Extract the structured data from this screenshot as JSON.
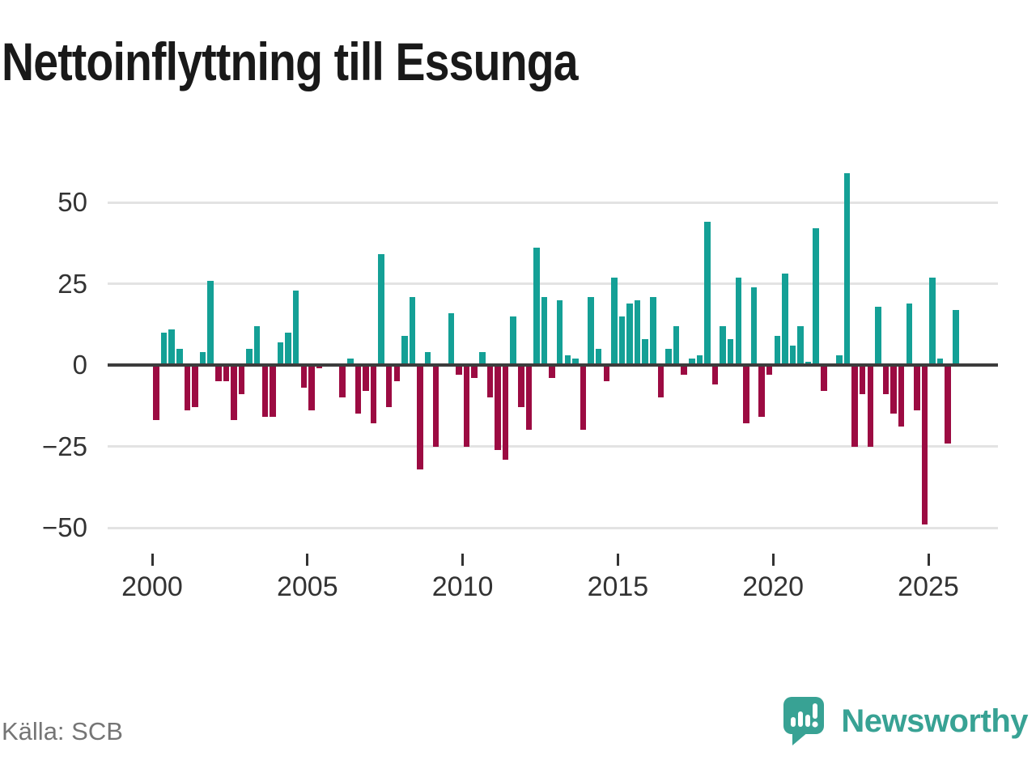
{
  "title": "Nettoinflyttning till Essunga",
  "source": "Källa: SCB",
  "logo": {
    "text": "Newsworthy",
    "icon": "newsworthy-speech-bubble-chart-icon"
  },
  "chart_data": {
    "type": "bar",
    "title": "Nettoinflyttning till Essunga",
    "frequency": "quarterly",
    "x_start": "2000-Q1",
    "x_end": "2025-Q4",
    "values": [
      -17,
      10,
      11,
      5,
      -14,
      -13,
      4,
      26,
      -5,
      -5,
      -17,
      -9,
      5,
      12,
      -16,
      -16,
      7,
      10,
      23,
      -7,
      -14,
      -1,
      0,
      0,
      -10,
      2,
      -15,
      -8,
      -18,
      34,
      -13,
      -5,
      9,
      21,
      -32,
      4,
      -25,
      0,
      16,
      -3,
      -25,
      -4,
      4,
      -10,
      -26,
      -29,
      15,
      -13,
      -20,
      36,
      21,
      -4,
      20,
      3,
      2,
      -20,
      21,
      5,
      -5,
      27,
      15,
      19,
      20,
      8,
      21,
      -10,
      5,
      12,
      -3,
      2,
      3,
      44,
      -6,
      12,
      8,
      27,
      -18,
      24,
      -16,
      -3,
      9,
      28,
      6,
      12,
      1,
      42,
      -8,
      0,
      3,
      59,
      -25,
      -9,
      -25,
      18,
      -9,
      -15,
      -19,
      19,
      -14,
      -49,
      27,
      2,
      -24,
      17
    ],
    "x_tick_years": [
      2000,
      2005,
      2010,
      2015,
      2020,
      2025
    ],
    "y_ticks": [
      50,
      25,
      0,
      -25,
      -50
    ],
    "y_tick_labels": [
      "50",
      "25",
      "0",
      "−25",
      "−50"
    ],
    "ylim": [
      -55,
      62
    ],
    "grid": true,
    "legend": "none",
    "colors": {
      "positive": "#14a096",
      "negative": "#9c0b42"
    }
  }
}
